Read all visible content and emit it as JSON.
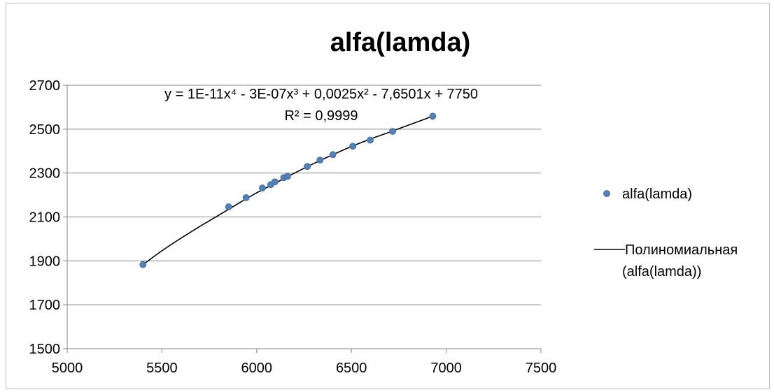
{
  "chart_data": {
    "type": "scatter",
    "title": "alfa(lamda)",
    "xlabel": "",
    "ylabel": "",
    "xlim": [
      5000,
      7500
    ],
    "ylim": [
      1500,
      2700
    ],
    "x_ticks": [
      5000,
      5500,
      6000,
      6500,
      7000,
      7500
    ],
    "y_ticks": [
      1500,
      1700,
      1900,
      2100,
      2300,
      2500,
      2700
    ],
    "grid": "horizontal",
    "legend_position": "right",
    "series": [
      {
        "name": "alfa(lamda)",
        "color": "#4f81bd",
        "x": [
          5400,
          5852,
          5944,
          6030,
          6074,
          6096,
          6143,
          6163,
          6267,
          6334,
          6402,
          6507,
          6599,
          6717,
          6929
        ],
        "y": [
          1883,
          2146,
          2188,
          2232,
          2247,
          2260,
          2279,
          2285,
          2330,
          2359,
          2384,
          2422,
          2450,
          2490,
          2559
        ]
      }
    ],
    "trendline": {
      "name": "Полиномиальная (alfa(lamda))",
      "legend_line1": "Полиномиальная",
      "legend_line2": "(alfa(lamda))",
      "color": "#000000",
      "x": [
        5400,
        5500,
        5600,
        5700,
        5800,
        5900,
        6000,
        6100,
        6200,
        6300,
        6400,
        6500,
        6600,
        6700,
        6800,
        6929
      ],
      "y": [
        1883,
        1946,
        2003,
        2057,
        2108,
        2160,
        2210,
        2255,
        2300,
        2343,
        2383,
        2421,
        2455,
        2486,
        2518,
        2559
      ]
    },
    "equation_text": "y = 1E-11x⁴ - 3E-07x³ + 0,0025x² - 7,6501x + 7750",
    "r2_text": "R² = 0,9999"
  }
}
